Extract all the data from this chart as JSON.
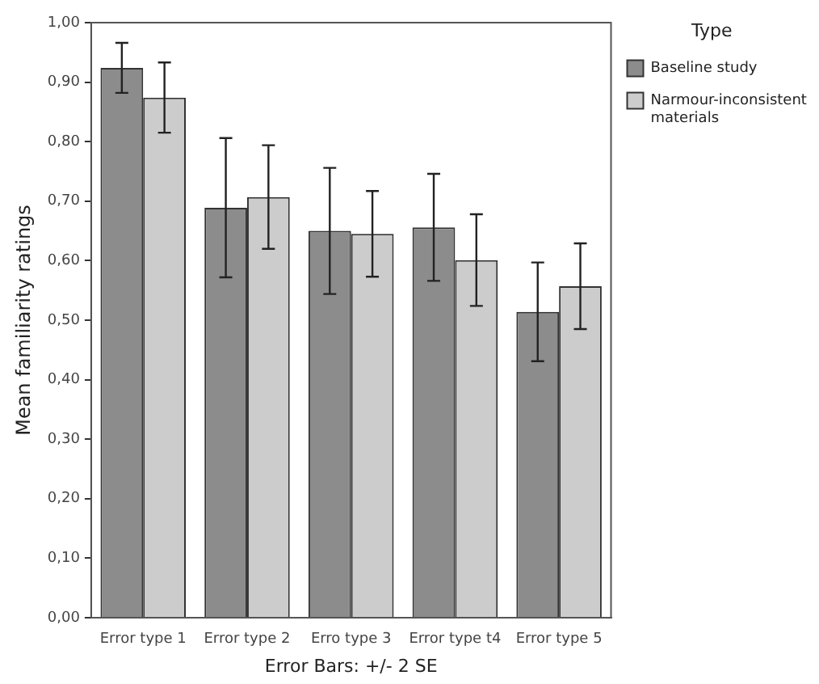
{
  "chart_data": {
    "type": "bar",
    "categories": [
      "Error type 1",
      "Error type 2",
      "Erro type 3",
      "Error type t4",
      "Error type 5"
    ],
    "series": [
      {
        "name": "Baseline study",
        "color": "#8c8c8c",
        "values": [
          0.924,
          0.689,
          0.65,
          0.656,
          0.514
        ],
        "errors": [
          0.042,
          0.117,
          0.106,
          0.09,
          0.083
        ]
      },
      {
        "name": "Narmour-inconsistent materials",
        "color": "#cccccc",
        "values": [
          0.874,
          0.707,
          0.645,
          0.601,
          0.557
        ],
        "errors": [
          0.059,
          0.087,
          0.072,
          0.077,
          0.072
        ]
      }
    ],
    "ylabel": "Mean familiarity ratings",
    "xlabel": "Error Bars: +/- 2 SE",
    "legend_title": "Type",
    "legend": "right",
    "ylim": [
      0,
      1
    ],
    "yticks": [
      {
        "value": 0,
        "label": "0,00"
      },
      {
        "value": 0.1,
        "label": "0,10"
      },
      {
        "value": 0.2,
        "label": "0,20"
      },
      {
        "value": 0.3,
        "label": "0,30"
      },
      {
        "value": 0.4,
        "label": "0,40"
      },
      {
        "value": 0.5,
        "label": "0,50"
      },
      {
        "value": 0.6,
        "label": "0,60"
      },
      {
        "value": 0.7,
        "label": "0,70"
      },
      {
        "value": 0.8,
        "label": "0,80"
      },
      {
        "value": 0.9,
        "label": "0,90"
      },
      {
        "value": 1,
        "label": "1,00"
      }
    ],
    "grid": false
  }
}
